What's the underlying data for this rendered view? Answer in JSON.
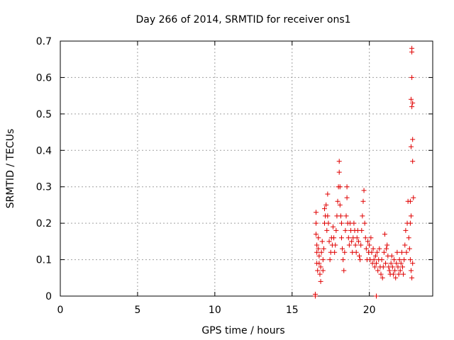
{
  "chart_data": {
    "type": "scatter",
    "title": "Day 266 of 2014, SRMTID for receiver ons1",
    "xlabel": "GPS time / hours",
    "ylabel": "SRMTID / TECUs",
    "xlim": [
      0,
      24.1
    ],
    "ylim": [
      0,
      0.7
    ],
    "x_ticks": [
      0,
      5,
      10,
      15,
      20
    ],
    "x_tick_labels": [
      "0",
      "5",
      "10",
      "15",
      "20"
    ],
    "y_ticks": [
      0,
      0.1,
      0.2,
      0.3,
      0.4,
      0.5,
      0.6,
      0.7
    ],
    "y_tick_labels": [
      "0",
      "0.1",
      "0.2",
      "0.3",
      "0.4",
      "0.5",
      "0.6",
      "0.7"
    ],
    "grid": true,
    "marker": "+",
    "marker_color": "#e00000",
    "series": [
      {
        "name": "ons1",
        "points": [
          [
            16.5,
            0.0
          ],
          [
            16.5,
            0.005
          ],
          [
            20.45,
            0.0
          ],
          [
            16.55,
            0.23
          ],
          [
            16.55,
            0.2
          ],
          [
            16.55,
            0.17
          ],
          [
            16.6,
            0.14
          ],
          [
            16.6,
            0.12
          ],
          [
            16.6,
            0.09
          ],
          [
            16.65,
            0.07
          ],
          [
            16.7,
            0.16
          ],
          [
            16.7,
            0.13
          ],
          [
            16.75,
            0.11
          ],
          [
            16.75,
            0.09
          ],
          [
            16.8,
            0.06
          ],
          [
            16.85,
            0.04
          ],
          [
            16.85,
            0.08
          ],
          [
            16.9,
            0.12
          ],
          [
            16.95,
            0.15
          ],
          [
            17.0,
            0.07
          ],
          [
            17.0,
            0.1
          ],
          [
            17.05,
            0.13
          ],
          [
            17.1,
            0.2
          ],
          [
            17.1,
            0.24
          ],
          [
            17.15,
            0.22
          ],
          [
            17.2,
            0.25
          ],
          [
            17.25,
            0.18
          ],
          [
            17.3,
            0.22
          ],
          [
            17.3,
            0.28
          ],
          [
            17.35,
            0.2
          ],
          [
            17.4,
            0.15
          ],
          [
            17.45,
            0.1
          ],
          [
            17.5,
            0.12
          ],
          [
            17.55,
            0.16
          ],
          [
            17.6,
            0.14
          ],
          [
            17.65,
            0.19
          ],
          [
            17.7,
            0.16
          ],
          [
            17.75,
            0.12
          ],
          [
            17.8,
            0.14
          ],
          [
            17.85,
            0.18
          ],
          [
            17.9,
            0.22
          ],
          [
            17.95,
            0.26
          ],
          [
            18.0,
            0.3
          ],
          [
            18.05,
            0.34
          ],
          [
            18.05,
            0.37
          ],
          [
            18.1,
            0.3
          ],
          [
            18.1,
            0.25
          ],
          [
            18.15,
            0.22
          ],
          [
            18.2,
            0.2
          ],
          [
            18.2,
            0.16
          ],
          [
            18.25,
            0.13
          ],
          [
            18.3,
            0.1
          ],
          [
            18.35,
            0.07
          ],
          [
            18.4,
            0.12
          ],
          [
            18.45,
            0.18
          ],
          [
            18.5,
            0.22
          ],
          [
            18.55,
            0.27
          ],
          [
            18.55,
            0.3
          ],
          [
            18.6,
            0.2
          ],
          [
            18.65,
            0.16
          ],
          [
            18.7,
            0.14
          ],
          [
            18.75,
            0.2
          ],
          [
            18.8,
            0.18
          ],
          [
            18.85,
            0.15
          ],
          [
            18.9,
            0.12
          ],
          [
            18.95,
            0.16
          ],
          [
            19.0,
            0.2
          ],
          [
            19.05,
            0.18
          ],
          [
            19.1,
            0.14
          ],
          [
            19.15,
            0.12
          ],
          [
            19.2,
            0.16
          ],
          [
            19.25,
            0.18
          ],
          [
            19.3,
            0.15
          ],
          [
            19.35,
            0.11
          ],
          [
            19.4,
            0.1
          ],
          [
            19.45,
            0.14
          ],
          [
            19.5,
            0.18
          ],
          [
            19.55,
            0.22
          ],
          [
            19.6,
            0.26
          ],
          [
            19.65,
            0.29
          ],
          [
            19.7,
            0.2
          ],
          [
            19.75,
            0.16
          ],
          [
            19.8,
            0.13
          ],
          [
            19.85,
            0.1
          ],
          [
            19.9,
            0.15
          ],
          [
            19.95,
            0.12
          ],
          [
            20.0,
            0.14
          ],
          [
            20.05,
            0.1
          ],
          [
            20.1,
            0.16
          ],
          [
            20.15,
            0.12
          ],
          [
            20.2,
            0.09
          ],
          [
            20.25,
            0.13
          ],
          [
            20.3,
            0.1
          ],
          [
            20.35,
            0.08
          ],
          [
            20.4,
            0.11
          ],
          [
            20.45,
            0.09
          ],
          [
            20.5,
            0.12
          ],
          [
            20.55,
            0.07
          ],
          [
            20.6,
            0.1
          ],
          [
            20.65,
            0.13
          ],
          [
            20.7,
            0.08
          ],
          [
            20.75,
            0.06
          ],
          [
            20.8,
            0.1
          ],
          [
            20.85,
            0.05
          ],
          [
            20.9,
            0.08
          ],
          [
            20.95,
            0.12
          ],
          [
            21.0,
            0.17
          ],
          [
            21.05,
            0.09
          ],
          [
            21.1,
            0.13
          ],
          [
            21.15,
            0.14
          ],
          [
            21.2,
            0.11
          ],
          [
            21.25,
            0.08
          ],
          [
            21.3,
            0.07
          ],
          [
            21.35,
            0.06
          ],
          [
            21.4,
            0.09
          ],
          [
            21.45,
            0.11
          ],
          [
            21.5,
            0.08
          ],
          [
            21.55,
            0.06
          ],
          [
            21.6,
            0.1
          ],
          [
            21.65,
            0.07
          ],
          [
            21.7,
            0.05
          ],
          [
            21.75,
            0.09
          ],
          [
            21.8,
            0.12
          ],
          [
            21.85,
            0.08
          ],
          [
            21.9,
            0.06
          ],
          [
            21.95,
            0.1
          ],
          [
            22.0,
            0.07
          ],
          [
            22.05,
            0.09
          ],
          [
            22.1,
            0.12
          ],
          [
            22.15,
            0.08
          ],
          [
            22.2,
            0.06
          ],
          [
            22.25,
            0.1
          ],
          [
            22.3,
            0.14
          ],
          [
            22.35,
            0.18
          ],
          [
            22.4,
            0.12
          ],
          [
            22.45,
            0.2
          ],
          [
            22.5,
            0.26
          ],
          [
            22.55,
            0.16
          ],
          [
            22.6,
            0.13
          ],
          [
            22.65,
            0.1
          ],
          [
            22.7,
            0.07
          ],
          [
            22.75,
            0.05
          ],
          [
            22.8,
            0.09
          ],
          [
            22.85,
            0.27
          ],
          [
            22.75,
            0.67
          ],
          [
            22.75,
            0.68
          ],
          [
            22.75,
            0.6
          ],
          [
            22.7,
            0.54
          ],
          [
            22.75,
            0.52
          ],
          [
            22.8,
            0.53
          ],
          [
            22.8,
            0.43
          ],
          [
            22.7,
            0.41
          ],
          [
            22.8,
            0.37
          ],
          [
            22.65,
            0.26
          ],
          [
            22.7,
            0.22
          ],
          [
            22.65,
            0.2
          ]
        ]
      }
    ]
  }
}
